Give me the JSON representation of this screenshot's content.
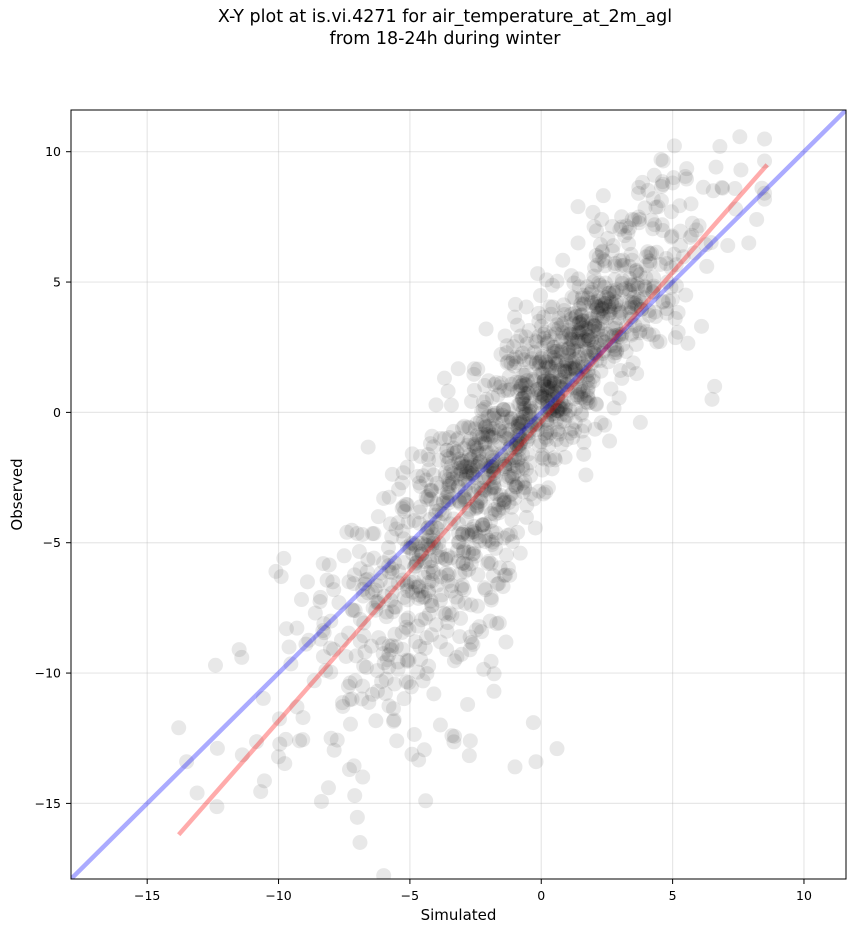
{
  "chart_data": {
    "type": "scatter",
    "title_line1": "X-Y plot at is.vi.4271 for air_temperature_at_2m_agl",
    "title_line2": "from 18-24h during winter",
    "xlabel": "Simulated",
    "ylabel": "Observed",
    "xlim": [
      -17.9,
      11.6
    ],
    "ylim": [
      -17.9,
      11.6
    ],
    "xticks": [
      -15,
      -10,
      -5,
      0,
      5,
      10
    ],
    "yticks": [
      -15,
      -10,
      -5,
      0,
      5,
      10
    ],
    "xtick_labels": [
      "−15",
      "−10",
      "−5",
      "0",
      "5",
      "10"
    ],
    "ytick_labels": [
      "−15",
      "−10",
      "−5",
      "0",
      "5",
      "10"
    ],
    "grid": true,
    "point_count_estimate": 1500,
    "marker_color": "#000000",
    "marker_alpha": 0.09,
    "points": [
      [
        -13.8,
        -12.1
      ],
      [
        -13.5,
        -13.4
      ],
      [
        -13.1,
        -14.6
      ],
      [
        -12.4,
        -9.7
      ],
      [
        -11.5,
        -9.1
      ],
      [
        -11.4,
        -9.4
      ],
      [
        -10.1,
        -6.1
      ],
      [
        -9.9,
        -6.3
      ],
      [
        -9.8,
        -5.6
      ],
      [
        -9.7,
        -8.3
      ],
      [
        -9.6,
        -9.0
      ],
      [
        -9.2,
        -12.6
      ],
      [
        -9.3,
        -11.3
      ],
      [
        -8.9,
        -6.5
      ],
      [
        -8.6,
        -7.7
      ],
      [
        -8.4,
        -8.7
      ],
      [
        -8.2,
        -9.9
      ],
      [
        -8.0,
        -12.5
      ],
      [
        -8.1,
        -14.4
      ],
      [
        -8.3,
        -5.8
      ],
      [
        -7.9,
        -6.8
      ],
      [
        -7.7,
        -7.3
      ],
      [
        -7.5,
        -5.5
      ],
      [
        -7.4,
        -4.6
      ],
      [
        -7.3,
        -13.7
      ],
      [
        -7.1,
        -14.7
      ],
      [
        -6.9,
        -16.5
      ],
      [
        -7.2,
        -11.0
      ],
      [
        -6.8,
        -10.5
      ],
      [
        -6.6,
        -6.4
      ],
      [
        -6.4,
        -7.5
      ],
      [
        -6.2,
        -4.0
      ],
      [
        -6.0,
        -3.3
      ],
      [
        -5.8,
        -9.3
      ],
      [
        -5.6,
        -11.8
      ],
      [
        -5.5,
        -12.6
      ],
      [
        -5.3,
        -2.7
      ],
      [
        -5.2,
        -3.8
      ],
      [
        -5.1,
        -2.1
      ],
      [
        -4.9,
        -6.9
      ],
      [
        -4.7,
        -8.2
      ],
      [
        -4.5,
        -10.3
      ],
      [
        -4.4,
        -14.9
      ],
      [
        -4.3,
        -3.2
      ],
      [
        -4.1,
        -2.4
      ],
      [
        -3.9,
        -5.0
      ],
      [
        -3.7,
        -7.7
      ],
      [
        -3.6,
        -9.1
      ],
      [
        -3.4,
        -12.4
      ],
      [
        -3.2,
        -1.5
      ],
      [
        -3.0,
        -0.6
      ],
      [
        -2.9,
        -6.1
      ],
      [
        -2.7,
        -12.6
      ],
      [
        -2.6,
        -8.9
      ],
      [
        -2.4,
        -2.9
      ],
      [
        -2.2,
        0.4
      ],
      [
        -2.1,
        3.2
      ],
      [
        -1.9,
        -7.2
      ],
      [
        -1.8,
        -10.7
      ],
      [
        -1.6,
        -1.8
      ],
      [
        -1.4,
        -0.9
      ],
      [
        -1.3,
        1.9
      ],
      [
        -1.1,
        -3.1
      ],
      [
        -1.0,
        -13.6
      ],
      [
        -0.8,
        -5.4
      ],
      [
        -0.6,
        0.7
      ],
      [
        -0.4,
        -0.5
      ],
      [
        -0.3,
        -11.9
      ],
      [
        -0.2,
        -13.4
      ],
      [
        -0.1,
        3.8
      ],
      [
        0.1,
        1.2
      ],
      [
        0.2,
        -0.3
      ],
      [
        0.4,
        0.9
      ],
      [
        0.5,
        2.5
      ],
      [
        0.6,
        -12.9
      ],
      [
        0.8,
        0.3
      ],
      [
        0.9,
        1.6
      ],
      [
        1.1,
        -0.8
      ],
      [
        1.2,
        3.4
      ],
      [
        1.4,
        6.5
      ],
      [
        1.5,
        1.0
      ],
      [
        1.7,
        -2.4
      ],
      [
        1.9,
        4.6
      ],
      [
        2.1,
        2.0
      ],
      [
        2.3,
        7.4
      ],
      [
        2.5,
        3.0
      ],
      [
        2.6,
        -1.1
      ],
      [
        2.8,
        5.1
      ],
      [
        3.0,
        3.8
      ],
      [
        3.1,
        2.6
      ],
      [
        3.3,
        6.9
      ],
      [
        3.5,
        1.9
      ],
      [
        3.7,
        8.4
      ],
      [
        3.9,
        4.4
      ],
      [
        4.0,
        3.1
      ],
      [
        4.2,
        6.1
      ],
      [
        4.4,
        2.7
      ],
      [
        4.6,
        7.2
      ],
      [
        4.8,
        5.0
      ],
      [
        5.0,
        8.8
      ],
      [
        5.1,
        3.6
      ],
      [
        5.3,
        6.4
      ],
      [
        5.5,
        4.5
      ],
      [
        5.7,
        8.0
      ],
      [
        5.9,
        7.0
      ],
      [
        6.1,
        3.3
      ],
      [
        6.3,
        5.6
      ],
      [
        6.5,
        0.5
      ],
      [
        6.6,
        1.0
      ],
      [
        6.8,
        10.2
      ],
      [
        6.9,
        8.6
      ],
      [
        7.1,
        6.4
      ],
      [
        7.4,
        7.8
      ],
      [
        7.6,
        9.3
      ],
      [
        7.9,
        6.5
      ],
      [
        8.2,
        7.4
      ],
      [
        8.4,
        8.6
      ]
    ],
    "series": [
      {
        "name": "",
        "type": "line",
        "color": "#0000ff",
        "alpha": 0.33,
        "x": [
          -17.9,
          11.6
        ],
        "y": [
          -17.9,
          11.6
        ]
      },
      {
        "name": "",
        "type": "line",
        "color": "#ff0000",
        "alpha": 0.33,
        "x": [
          -13.8,
          8.6
        ],
        "y": [
          -16.2,
          9.5
        ]
      }
    ]
  }
}
